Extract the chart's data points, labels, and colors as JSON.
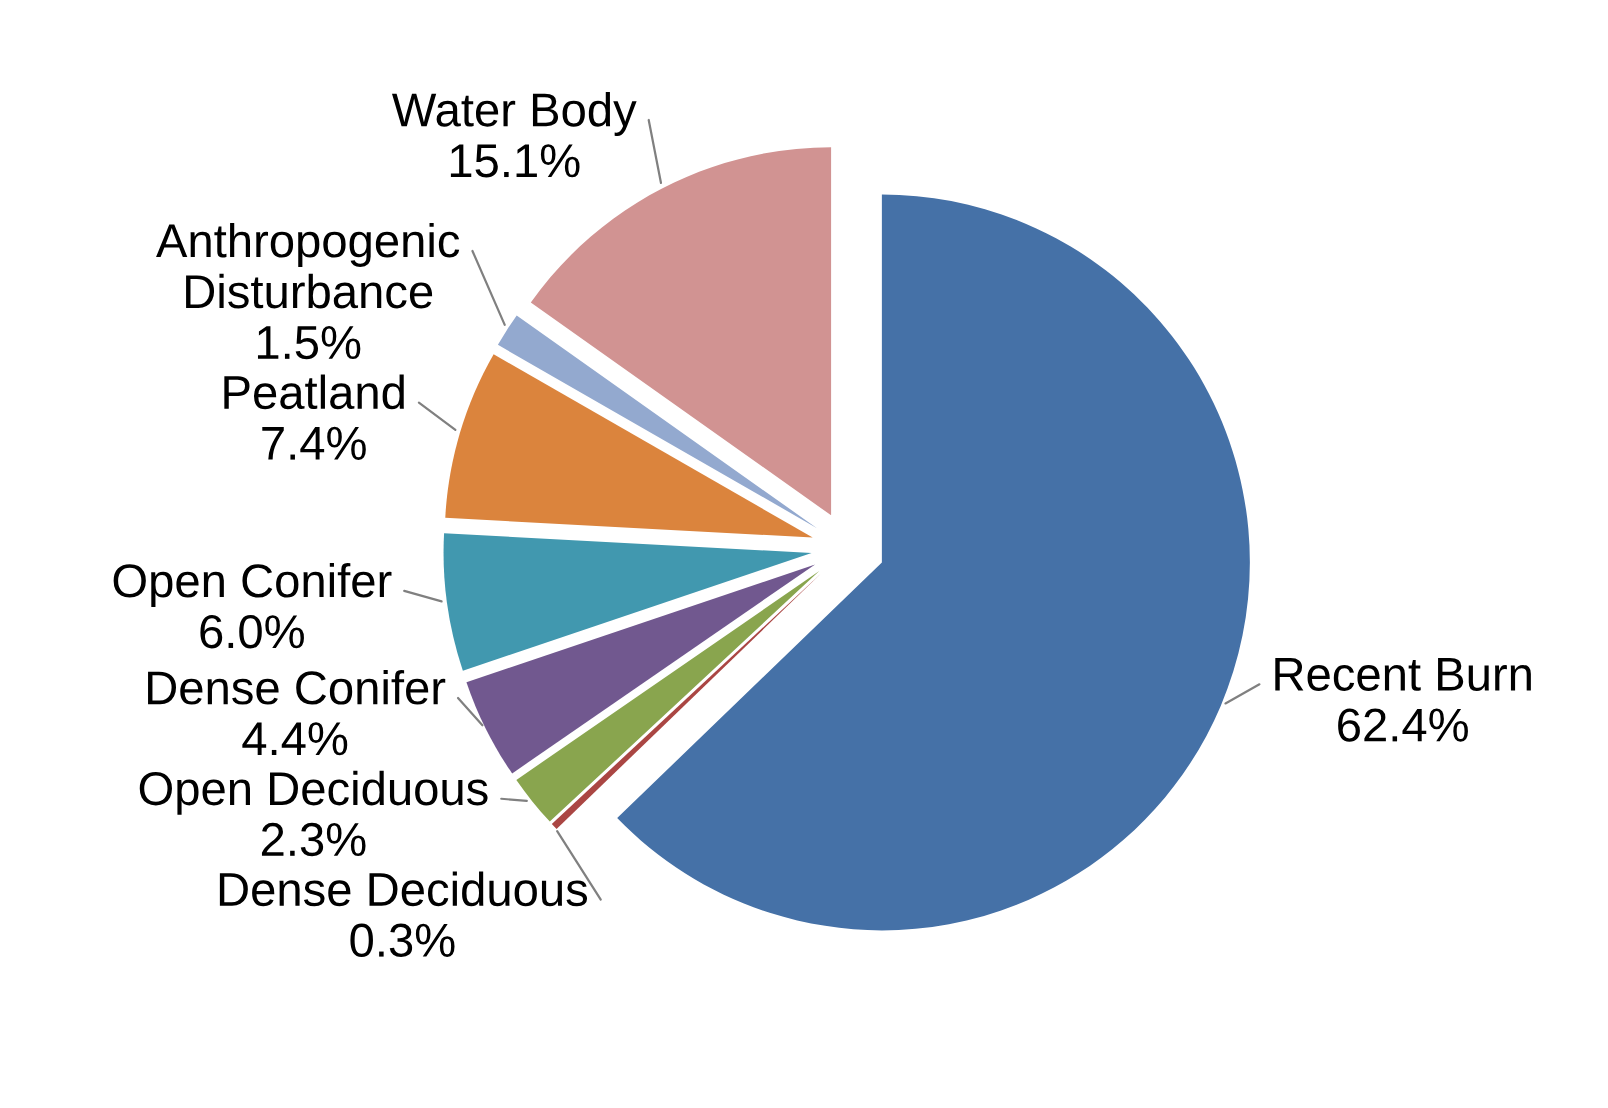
{
  "chart_data": {
    "type": "pie",
    "categories": [
      "Recent Burn",
      "Dense Deciduous",
      "Open Deciduous",
      "Dense Conifer",
      "Open Conifer",
      "Peatland",
      "Anthropogenic Disturbance",
      "Water Body"
    ],
    "values": [
      62.4,
      0.3,
      2.3,
      4.4,
      6.0,
      7.4,
      1.5,
      15.1
    ],
    "value_labels": [
      "62.4%",
      "0.3%",
      "2.3%",
      "4.4%",
      "6.0%",
      "7.4%",
      "1.5%",
      "15.1%"
    ],
    "colors": [
      "#4571a7",
      "#aa4643",
      "#89a54e",
      "#71588f",
      "#4198af",
      "#db843d",
      "#93a9cf",
      "#d19392"
    ]
  }
}
